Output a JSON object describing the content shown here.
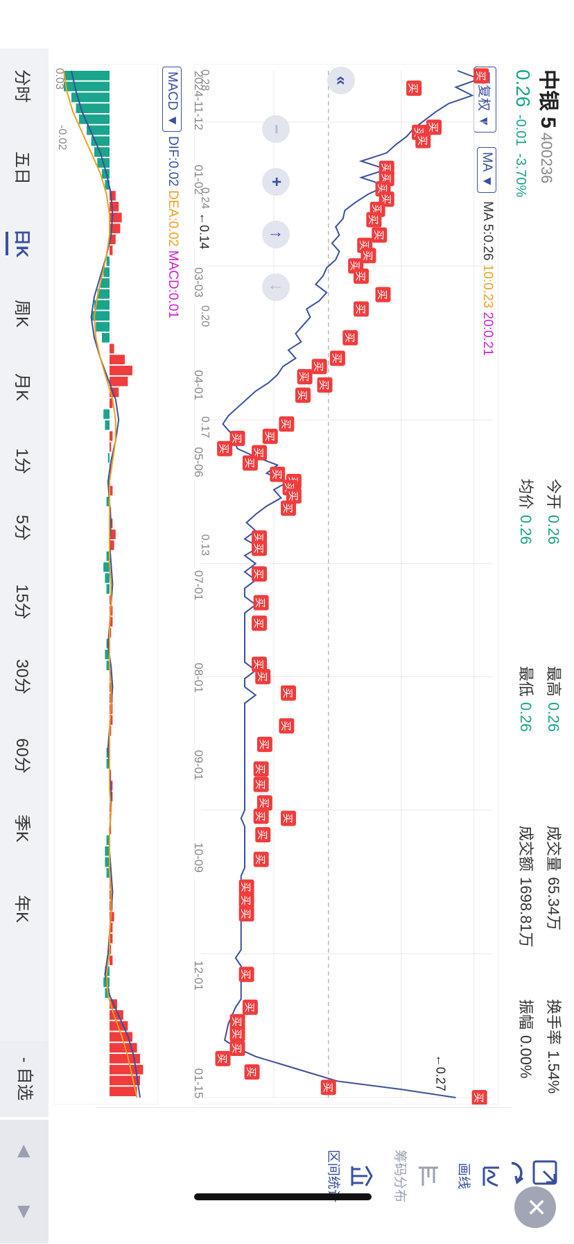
{
  "header": {
    "name": "中银 5",
    "code": "400236",
    "price": "0.26",
    "change": "-0.01",
    "change_pct": "-3.70%",
    "stats": [
      {
        "label": "今开",
        "value": "0.26"
      },
      {
        "label": "均价",
        "value": "0.26"
      },
      {
        "label": "最高",
        "value": "0.26"
      },
      {
        "label": "最低",
        "value": "0.26"
      },
      {
        "label": "成交量",
        "value": "65.34万"
      },
      {
        "label": "成交额",
        "value": "1698.81万"
      },
      {
        "label": "换手率",
        "value": "1.54%"
      },
      {
        "label": "振幅",
        "value": "0.00%"
      }
    ]
  },
  "toolbar": {
    "adjust_label": "不复权",
    "ma_label": "MA",
    "ma_prefix": "MA",
    "ma5": "5:0.26",
    "ma10": "10:0.23",
    "ma20": "20:0.21"
  },
  "macd_bar": {
    "label": "MACD",
    "dif": "DIF:0.02",
    "dea": "DEA:0.02",
    "macd": "MACD:0.01"
  },
  "side_panel": {
    "draw": "画线",
    "chips": "筹码分布",
    "range_stats": "区间统计"
  },
  "tabs": [
    "分时",
    "五日",
    "日K",
    "周K",
    "月K",
    "1分",
    "5分",
    "15分",
    "30分",
    "60分",
    "季K",
    "年K"
  ],
  "active_tab": "日K",
  "add_watch": "- 自选",
  "icons": {
    "fullscreen": "expand-icon",
    "refresh": "refresh-icon",
    "close": "close-icon"
  },
  "colors": {
    "up": "#f03c3c",
    "down": "#1aa58c",
    "accent": "#3a4fa0",
    "ma10": "#f0a020",
    "macd_label": "#d020d0"
  },
  "chart_data": {
    "type": "line",
    "price_ticks": [
      "0.28",
      "0.24",
      "0.20",
      "0.17",
      "0.13"
    ],
    "x_ticks": [
      "2024-11-12",
      "01-02",
      "03-03",
      "04-01",
      "05-06",
      "07-01",
      "08-01",
      "09-01",
      "10-09",
      "12-01",
      "01-15"
    ],
    "ylim": [
      0.13,
      0.29
    ],
    "dashed_reference": 0.2,
    "annotations": [
      {
        "label": "0.14",
        "x": 0.165,
        "y": 0.14
      },
      {
        "label": "0.27",
        "x": 0.985,
        "y": 0.27
      }
    ],
    "buy_marker_label": "买",
    "buy_markers": [
      {
        "x": 0.005,
        "y": 0.284
      },
      {
        "x": 0.017,
        "y": 0.247
      },
      {
        "x": 0.055,
        "y": 0.258
      },
      {
        "x": 0.06,
        "y": 0.25
      },
      {
        "x": 0.068,
        "y": 0.252
      },
      {
        "x": 0.095,
        "y": 0.232
      },
      {
        "x": 0.105,
        "y": 0.232
      },
      {
        "x": 0.115,
        "y": 0.23
      },
      {
        "x": 0.125,
        "y": 0.232
      },
      {
        "x": 0.135,
        "y": 0.227
      },
      {
        "x": 0.145,
        "y": 0.225
      },
      {
        "x": 0.16,
        "y": 0.228
      },
      {
        "x": 0.17,
        "y": 0.22
      },
      {
        "x": 0.18,
        "y": 0.222
      },
      {
        "x": 0.19,
        "y": 0.215
      },
      {
        "x": 0.2,
        "y": 0.218
      },
      {
        "x": 0.218,
        "y": 0.23
      },
      {
        "x": 0.232,
        "y": 0.218
      },
      {
        "x": 0.26,
        "y": 0.212
      },
      {
        "x": 0.28,
        "y": 0.205
      },
      {
        "x": 0.288,
        "y": 0.195
      },
      {
        "x": 0.298,
        "y": 0.187
      },
      {
        "x": 0.306,
        "y": 0.198
      },
      {
        "x": 0.316,
        "y": 0.186
      },
      {
        "x": 0.344,
        "y": 0.177
      },
      {
        "x": 0.356,
        "y": 0.168
      },
      {
        "x": 0.372,
        "y": 0.162
      },
      {
        "x": 0.382,
        "y": 0.157
      },
      {
        "x": 0.358,
        "y": 0.15
      },
      {
        "x": 0.368,
        "y": 0.143
      },
      {
        "x": 0.393,
        "y": 0.172
      },
      {
        "x": 0.4,
        "y": 0.181
      },
      {
        "x": 0.406,
        "y": 0.179
      },
      {
        "x": 0.414,
        "y": 0.181
      },
      {
        "x": 0.426,
        "y": 0.178
      },
      {
        "x": 0.455,
        "y": 0.162
      },
      {
        "x": 0.465,
        "y": 0.162
      },
      {
        "x": 0.49,
        "y": 0.162
      },
      {
        "x": 0.518,
        "y": 0.163
      },
      {
        "x": 0.538,
        "y": 0.162
      },
      {
        "x": 0.578,
        "y": 0.162
      },
      {
        "x": 0.59,
        "y": 0.164
      },
      {
        "x": 0.606,
        "y": 0.178
      },
      {
        "x": 0.638,
        "y": 0.177
      },
      {
        "x": 0.656,
        "y": 0.165
      },
      {
        "x": 0.68,
        "y": 0.163
      },
      {
        "x": 0.695,
        "y": 0.163
      },
      {
        "x": 0.713,
        "y": 0.165
      },
      {
        "x": 0.726,
        "y": 0.163
      },
      {
        "x": 0.744,
        "y": 0.164
      },
      {
        "x": 0.728,
        "y": 0.178
      },
      {
        "x": 0.768,
        "y": 0.163
      },
      {
        "x": 0.795,
        "y": 0.155
      },
      {
        "x": 0.808,
        "y": 0.155
      },
      {
        "x": 0.821,
        "y": 0.155
      },
      {
        "x": 0.88,
        "y": 0.155
      },
      {
        "x": 0.912,
        "y": 0.157
      },
      {
        "x": 0.926,
        "y": 0.15
      },
      {
        "x": 0.938,
        "y": 0.15
      },
      {
        "x": 0.952,
        "y": 0.15
      },
      {
        "x": 0.962,
        "y": 0.142
      },
      {
        "x": 0.975,
        "y": 0.158
      },
      {
        "x": 0.99,
        "y": 0.2
      },
      {
        "x": 1.0,
        "y": 0.283
      }
    ],
    "price_line": [
      [
        0.0,
        0.271
      ],
      [
        0.008,
        0.283
      ],
      [
        0.016,
        0.27
      ],
      [
        0.024,
        0.279
      ],
      [
        0.032,
        0.266
      ],
      [
        0.04,
        0.259
      ],
      [
        0.048,
        0.253
      ],
      [
        0.056,
        0.247
      ],
      [
        0.064,
        0.243
      ],
      [
        0.072,
        0.237
      ],
      [
        0.08,
        0.232
      ],
      [
        0.088,
        0.218
      ],
      [
        0.096,
        0.232
      ],
      [
        0.104,
        0.218
      ],
      [
        0.112,
        0.232
      ],
      [
        0.12,
        0.222
      ],
      [
        0.128,
        0.215
      ],
      [
        0.136,
        0.209
      ],
      [
        0.144,
        0.208
      ],
      [
        0.152,
        0.204
      ],
      [
        0.16,
        0.206
      ],
      [
        0.168,
        0.202
      ],
      [
        0.176,
        0.206
      ],
      [
        0.184,
        0.204
      ],
      [
        0.192,
        0.199
      ],
      [
        0.2,
        0.197
      ],
      [
        0.208,
        0.193
      ],
      [
        0.216,
        0.199
      ],
      [
        0.224,
        0.195
      ],
      [
        0.232,
        0.188
      ],
      [
        0.24,
        0.19
      ],
      [
        0.248,
        0.186
      ],
      [
        0.256,
        0.182
      ],
      [
        0.264,
        0.185
      ],
      [
        0.272,
        0.178
      ],
      [
        0.28,
        0.182
      ],
      [
        0.288,
        0.175
      ],
      [
        0.296,
        0.172
      ],
      [
        0.304,
        0.167
      ],
      [
        0.312,
        0.16
      ],
      [
        0.32,
        0.155
      ],
      [
        0.328,
        0.15
      ],
      [
        0.336,
        0.145
      ],
      [
        0.344,
        0.142
      ],
      [
        0.352,
        0.146
      ],
      [
        0.36,
        0.148
      ],
      [
        0.368,
        0.15
      ],
      [
        0.376,
        0.16
      ],
      [
        0.384,
        0.172
      ],
      [
        0.392,
        0.166
      ],
      [
        0.4,
        0.178
      ],
      [
        0.408,
        0.17
      ],
      [
        0.416,
        0.174
      ],
      [
        0.424,
        0.166
      ],
      [
        0.432,
        0.16
      ],
      [
        0.44,
        0.155
      ],
      [
        0.448,
        0.16
      ],
      [
        0.456,
        0.154
      ],
      [
        0.464,
        0.162
      ],
      [
        0.472,
        0.154
      ],
      [
        0.48,
        0.16
      ],
      [
        0.488,
        0.154
      ],
      [
        0.496,
        0.16
      ],
      [
        0.504,
        0.154
      ],
      [
        0.512,
        0.154
      ],
      [
        0.52,
        0.16
      ],
      [
        0.528,
        0.154
      ],
      [
        0.536,
        0.154
      ],
      [
        0.544,
        0.154
      ],
      [
        0.552,
        0.154
      ],
      [
        0.56,
        0.154
      ],
      [
        0.568,
        0.154
      ],
      [
        0.576,
        0.154
      ],
      [
        0.584,
        0.16
      ],
      [
        0.592,
        0.154
      ],
      [
        0.6,
        0.154
      ],
      [
        0.608,
        0.16
      ],
      [
        0.616,
        0.154
      ],
      [
        0.624,
        0.154
      ],
      [
        0.632,
        0.154
      ],
      [
        0.64,
        0.154
      ],
      [
        0.648,
        0.154
      ],
      [
        0.656,
        0.154
      ],
      [
        0.664,
        0.154
      ],
      [
        0.672,
        0.154
      ],
      [
        0.68,
        0.154
      ],
      [
        0.688,
        0.154
      ],
      [
        0.696,
        0.154
      ],
      [
        0.704,
        0.154
      ],
      [
        0.712,
        0.154
      ],
      [
        0.72,
        0.154
      ],
      [
        0.728,
        0.152
      ],
      [
        0.736,
        0.154
      ],
      [
        0.744,
        0.154
      ],
      [
        0.752,
        0.154
      ],
      [
        0.76,
        0.154
      ],
      [
        0.768,
        0.154
      ],
      [
        0.776,
        0.154
      ],
      [
        0.784,
        0.152
      ],
      [
        0.792,
        0.152
      ],
      [
        0.8,
        0.154
      ],
      [
        0.808,
        0.152
      ],
      [
        0.816,
        0.152
      ],
      [
        0.824,
        0.152
      ],
      [
        0.832,
        0.152
      ],
      [
        0.84,
        0.152
      ],
      [
        0.848,
        0.152
      ],
      [
        0.856,
        0.152
      ],
      [
        0.864,
        0.149
      ],
      [
        0.872,
        0.152
      ],
      [
        0.88,
        0.152
      ],
      [
        0.888,
        0.152
      ],
      [
        0.896,
        0.152
      ],
      [
        0.904,
        0.152
      ],
      [
        0.912,
        0.149
      ],
      [
        0.92,
        0.147
      ],
      [
        0.928,
        0.145
      ],
      [
        0.936,
        0.144
      ],
      [
        0.944,
        0.143
      ],
      [
        0.952,
        0.15
      ],
      [
        0.96,
        0.16
      ],
      [
        0.968,
        0.175
      ],
      [
        0.976,
        0.19
      ],
      [
        0.984,
        0.205
      ],
      [
        0.992,
        0.24
      ],
      [
        1.0,
        0.27
      ]
    ],
    "macd_hist": [
      -0.03,
      -0.03,
      -0.025,
      -0.022,
      -0.02,
      -0.015,
      -0.012,
      -0.01,
      -0.008,
      -0.005,
      -0.003,
      0.004,
      0.006,
      0.008,
      0.007,
      0.004,
      0.002,
      -0.002,
      -0.004,
      -0.006,
      -0.008,
      -0.01,
      -0.012,
      -0.009,
      -0.005,
      0.003,
      0.01,
      0.015,
      0.012,
      0.006,
      0.002,
      -0.004,
      -0.003,
      0.002,
      0.001,
      -0.001,
      0.001,
      -0.001,
      0.002,
      -0.002,
      0.001,
      0.002,
      0.004,
      0.003,
      -0.002,
      -0.004,
      -0.003,
      -0.002,
      0.001,
      0.002,
      0.002,
      0.001,
      -0.002,
      -0.003,
      -0.002,
      0.001,
      0.002,
      0.002,
      0.002,
      0.002,
      0.001,
      -0.001,
      -0.002,
      -0.002,
      0.001,
      0.002,
      0.002,
      0.001,
      0.001,
      0.001,
      -0.002,
      -0.003,
      -0.003,
      -0.002,
      0.001,
      0.001,
      0.002,
      0.003,
      0.002,
      0.002,
      0.001,
      0.002,
      -0.003,
      -0.004,
      -0.003,
      0.005,
      0.009,
      0.012,
      0.015,
      0.018,
      0.02,
      0.022,
      0.02,
      0.018
    ],
    "dif": [
      -0.025,
      -0.022,
      -0.018,
      -0.012,
      -0.006,
      -0.002,
      0.001,
      0.002,
      0.001,
      -0.002,
      -0.006,
      -0.01,
      -0.012,
      -0.01,
      -0.006,
      -0.001,
      0.004,
      0.006,
      0.004,
      0.001,
      -0.001,
      0.0,
      0.001,
      0.0,
      0.001,
      0.002,
      0.001,
      0.0,
      -0.001,
      0.001,
      0.002,
      0.001,
      0.0,
      -0.001,
      0.0,
      0.001,
      0.001,
      0.0,
      0.0,
      0.001,
      0.002,
      0.001,
      0.0,
      -0.001,
      -0.003,
      0.0,
      0.006,
      0.012,
      0.016,
      0.018,
      0.02
    ],
    "dea": [
      -0.03,
      -0.028,
      -0.024,
      -0.018,
      -0.012,
      -0.006,
      -0.002,
      0.0,
      0.0,
      -0.002,
      -0.005,
      -0.008,
      -0.01,
      -0.009,
      -0.006,
      -0.002,
      0.002,
      0.004,
      0.004,
      0.002,
      0.0,
      0.0,
      0.0,
      0.0,
      0.0,
      0.001,
      0.001,
      0.0,
      0.0,
      0.0,
      0.001,
      0.001,
      0.0,
      0.0,
      0.0,
      0.0,
      0.001,
      0.0,
      0.0,
      0.0,
      0.001,
      0.001,
      0.0,
      0.0,
      -0.002,
      -0.001,
      0.003,
      0.008,
      0.012,
      0.015,
      0.018
    ],
    "macd_ticks": [
      "0.03",
      "-0.02"
    ]
  }
}
